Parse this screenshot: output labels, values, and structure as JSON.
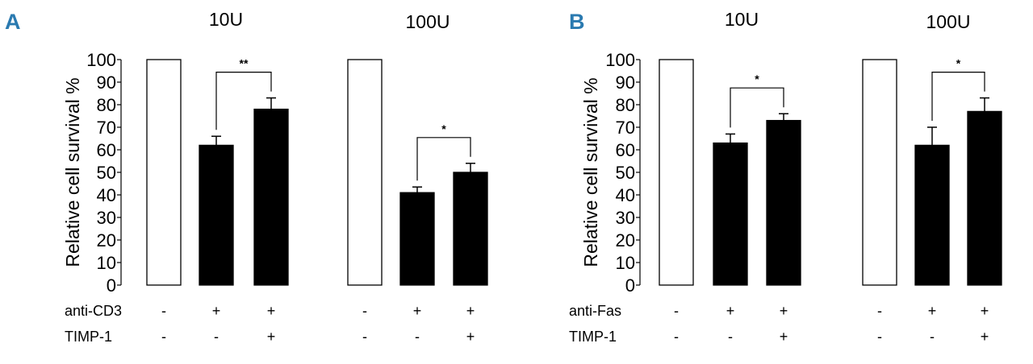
{
  "panels": [
    {
      "letter": "A",
      "letter_color": "#2a7ab0",
      "group_labels": [
        "10U",
        "100U"
      ],
      "condition_rows": [
        {
          "label": "anti-CD3",
          "signs": [
            "-",
            "+",
            "+",
            "-",
            "+",
            "+"
          ]
        },
        {
          "label": "TIMP-1",
          "signs": [
            "-",
            "-",
            "+",
            "-",
            "-",
            "+"
          ]
        }
      ],
      "significance": [
        {
          "from_bar": 1,
          "to_bar": 2,
          "label": "**"
        },
        {
          "from_bar": 4,
          "to_bar": 5,
          "label": "*"
        }
      ]
    },
    {
      "letter": "B",
      "letter_color": "#2a7ab0",
      "group_labels": [
        "10U",
        "100U"
      ],
      "condition_rows": [
        {
          "label": "anti-Fas",
          "signs": [
            "-",
            "+",
            "+",
            "-",
            "+",
            "+"
          ]
        },
        {
          "label": "TIMP-1",
          "signs": [
            "-",
            "-",
            "+",
            "-",
            "-",
            "+"
          ]
        }
      ],
      "significance": [
        {
          "from_bar": 1,
          "to_bar": 2,
          "label": "*"
        },
        {
          "from_bar": 4,
          "to_bar": 5,
          "label": "*"
        }
      ]
    }
  ],
  "chart_data": [
    {
      "type": "bar",
      "title": "",
      "xlabel": "",
      "ylabel": "Relative cell survival %",
      "ylim": [
        0,
        100
      ],
      "yticks": [
        "0",
        "10",
        "20",
        "30",
        "40",
        "50",
        "60",
        "70",
        "80",
        "90",
        "100"
      ],
      "values": [
        100,
        62,
        78,
        100,
        41,
        50
      ],
      "errors": [
        0,
        4,
        5,
        0,
        2.5,
        4
      ],
      "fills": [
        "#ffffff",
        "#000000",
        "#000000",
        "#ffffff",
        "#000000",
        "#000000"
      ],
      "grid": false
    },
    {
      "type": "bar",
      "title": "",
      "xlabel": "",
      "ylabel": "Relative cell survival %",
      "ylim": [
        0,
        100
      ],
      "yticks": [
        "0",
        "10",
        "20",
        "30",
        "40",
        "50",
        "60",
        "70",
        "80",
        "90",
        "100"
      ],
      "values": [
        100,
        63,
        73,
        100,
        62,
        77
      ],
      "errors": [
        0,
        4,
        3,
        0,
        8,
        6
      ],
      "fills": [
        "#ffffff",
        "#000000",
        "#000000",
        "#ffffff",
        "#000000",
        "#000000"
      ],
      "grid": false
    }
  ]
}
